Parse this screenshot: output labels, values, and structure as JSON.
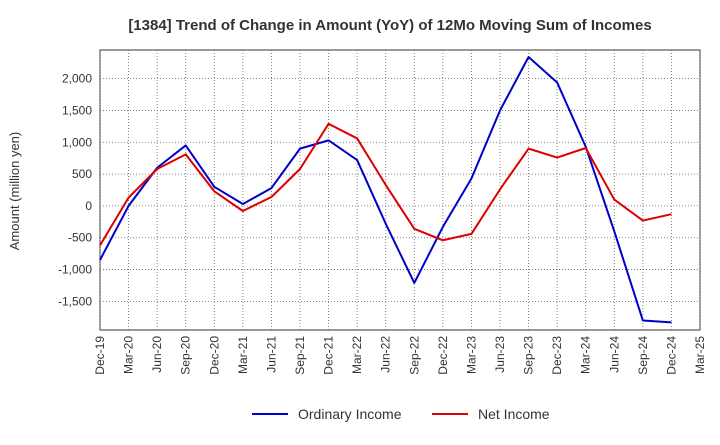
{
  "chart_data": {
    "type": "line",
    "title": "[1384]  Trend of Change in Amount (YoY) of 12Mo Moving Sum of Incomes",
    "xlabel": "",
    "ylabel": "Amount (million yen)",
    "categories": [
      "Dec-19",
      "Mar-20",
      "Jun-20",
      "Sep-20",
      "Dec-20",
      "Mar-21",
      "Jun-21",
      "Sep-21",
      "Dec-21",
      "Mar-22",
      "Jun-22",
      "Sep-22",
      "Dec-22",
      "Mar-23",
      "Jun-23",
      "Sep-23",
      "Dec-23",
      "Mar-24",
      "Jun-24",
      "Sep-24",
      "Dec-24",
      "Mar-25"
    ],
    "ylim": [
      -1950,
      2450
    ],
    "yticks": [
      2000,
      1500,
      1000,
      500,
      0,
      -500,
      -1000,
      -1500
    ],
    "ytick_labels": [
      "2,000",
      "1,500",
      "1,000",
      "500",
      "0",
      "-500",
      "-1,000",
      "-1,500"
    ],
    "grid": true,
    "legend_position": "bottom-center",
    "series": [
      {
        "name": "Ordinary Income",
        "color": "#0000cc",
        "values": [
          -850,
          0,
          600,
          950,
          300,
          30,
          280,
          900,
          1030,
          720,
          -280,
          -1210,
          -330,
          430,
          1500,
          2340,
          1940,
          930,
          -400,
          -1800,
          -1830,
          null
        ]
      },
      {
        "name": "Net Income",
        "color": "#dd0000",
        "values": [
          -620,
          130,
          580,
          810,
          230,
          -80,
          140,
          580,
          1290,
          1060,
          330,
          -360,
          -540,
          -440,
          260,
          900,
          760,
          910,
          100,
          -230,
          -130,
          null
        ]
      }
    ]
  }
}
